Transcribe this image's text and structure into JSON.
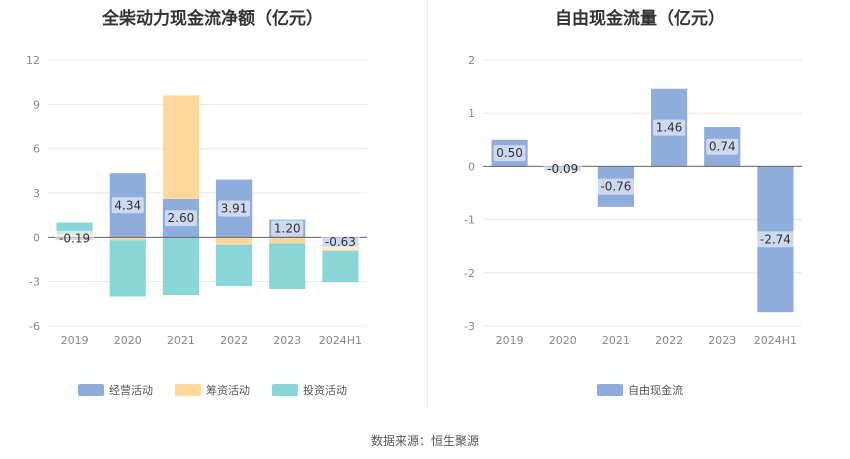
{
  "chart_data": [
    {
      "type": "bar",
      "stacked": true,
      "title": "全柴动力现金流净额（亿元）",
      "categories": [
        "2019",
        "2020",
        "2021",
        "2022",
        "2023",
        "2024H1"
      ],
      "ylim": [
        -6,
        12
      ],
      "yticks": [
        12,
        9,
        6,
        3,
        0,
        -3,
        -6
      ],
      "grid": true,
      "legend_position": "bottom",
      "series": [
        {
          "name": "经营活动",
          "color": "#8eacdc",
          "values": [
            -0.19,
            4.34,
            2.6,
            3.91,
            1.2,
            -0.63
          ],
          "labels": [
            "-0.19",
            "4.34",
            "2.60",
            "3.91",
            "1.20",
            "-0.63"
          ]
        },
        {
          "name": "筹资活动",
          "color": "#fed89a",
          "values": [
            0.2,
            -0.2,
            7.0,
            -0.5,
            -0.4,
            -0.3
          ]
        },
        {
          "name": "投资活动",
          "color": "#88d6d8",
          "values": [
            0.8,
            -3.8,
            -3.9,
            -2.8,
            -3.1,
            -2.1
          ]
        }
      ]
    },
    {
      "type": "bar",
      "title": "自由现金流量（亿元）",
      "categories": [
        "2019",
        "2020",
        "2021",
        "2022",
        "2023",
        "2024H1"
      ],
      "ylim": [
        -3,
        2
      ],
      "yticks": [
        2,
        1,
        0,
        -1,
        -2,
        -3
      ],
      "grid": true,
      "legend_position": "bottom",
      "series": [
        {
          "name": "自由现金流",
          "color": "#8eacdc",
          "values": [
            0.5,
            -0.09,
            -0.76,
            1.46,
            0.74,
            -2.74
          ],
          "labels": [
            "0.50",
            "-0.09",
            "-0.76",
            "1.46",
            "0.74",
            "-2.74"
          ]
        }
      ]
    }
  ],
  "source": "数据来源：恒生聚源"
}
